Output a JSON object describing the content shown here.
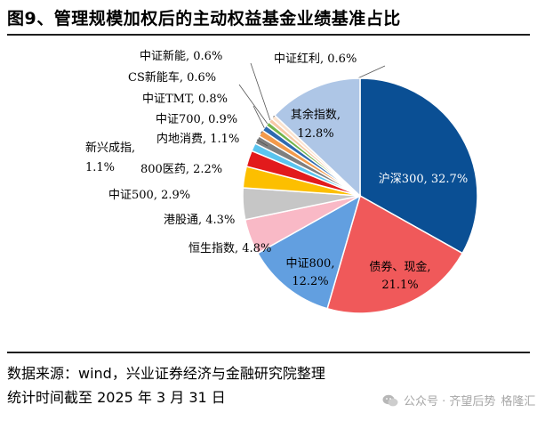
{
  "figure": {
    "title": "图9、管理规模加权后的主动权益基金业绩基准占比",
    "source": "数据来源：wind，兴业证券经济与金融研究院整理",
    "date_note": "统计时间截至 2025 年 3 月 31 日"
  },
  "watermark": {
    "text": "公众号 · 齐望后势",
    "icon": "wechat-icon",
    "logo_text": "格隆汇"
  },
  "chart_data": {
    "type": "pie",
    "title": "",
    "unit": "%",
    "slices": [
      {
        "name": "沪深300",
        "value": 32.7,
        "label": [
          "沪深300, 32.7%"
        ],
        "color": "#0a4f94",
        "label_color": "#ffffff"
      },
      {
        "name": "债券、现金",
        "value": 21.1,
        "label": [
          "债券、现金,",
          "21.1%"
        ],
        "color": "#f0595a",
        "label_color": "#000000"
      },
      {
        "name": "中证800",
        "value": 12.2,
        "label": [
          "中证800,",
          "12.2%"
        ],
        "color": "#629fe0",
        "label_color": "#000000"
      },
      {
        "name": "恒生指数",
        "value": 4.8,
        "label": [
          "恒生指数, 4.8%"
        ],
        "color": "#f9b9c6",
        "label_color": "#000000"
      },
      {
        "name": "港股通",
        "value": 4.3,
        "label": [
          "港股通, 4.3%"
        ],
        "color": "#c6c6c6",
        "label_color": "#000000"
      },
      {
        "name": "中证500",
        "value": 2.9,
        "label": [
          "中证500, 2.9%"
        ],
        "color": "#fcbf00",
        "label_color": "#000000"
      },
      {
        "name": "800医药",
        "value": 2.2,
        "label": [
          "800医药, 2.2%"
        ],
        "color": "#e21a1c",
        "label_color": "#000000"
      },
      {
        "name": "新兴成指",
        "value": 1.1,
        "label": [
          "新兴成指,",
          "1.1%"
        ],
        "color": "#5ac4ef",
        "label_color": "#000000"
      },
      {
        "name": "内地消费",
        "value": 1.1,
        "label": [
          "内地消费, 1.1%"
        ],
        "color": "#7f7f7f",
        "label_color": "#000000"
      },
      {
        "name": "中证700",
        "value": 0.9,
        "label": [
          "中证700, 0.9%"
        ],
        "color": "#f39a4b",
        "label_color": "#000000"
      },
      {
        "name": "中证TMT",
        "value": 0.8,
        "label": [
          "中证TMT, 0.8%"
        ],
        "color": "#2e6ab0",
        "label_color": "#000000"
      },
      {
        "name": "CS新能车",
        "value": 0.6,
        "label": [
          "CS新能车, 0.6%"
        ],
        "color": "#73b44b",
        "label_color": "#000000"
      },
      {
        "name": "中证新能",
        "value": 0.6,
        "label": [
          "中证新能, 0.6%"
        ],
        "color": "#f7c8a6",
        "label_color": "#000000"
      },
      {
        "name": "中证红利",
        "value": 0.6,
        "label": [
          "中证红利, 0.6%"
        ],
        "color": "#fbe3cf",
        "label_color": "#000000"
      },
      {
        "name": "其余指数",
        "value": 12.8,
        "label": [
          "其余指数,",
          "12.8%"
        ],
        "color": "#aec6e6",
        "label_color": "#000000"
      }
    ]
  }
}
